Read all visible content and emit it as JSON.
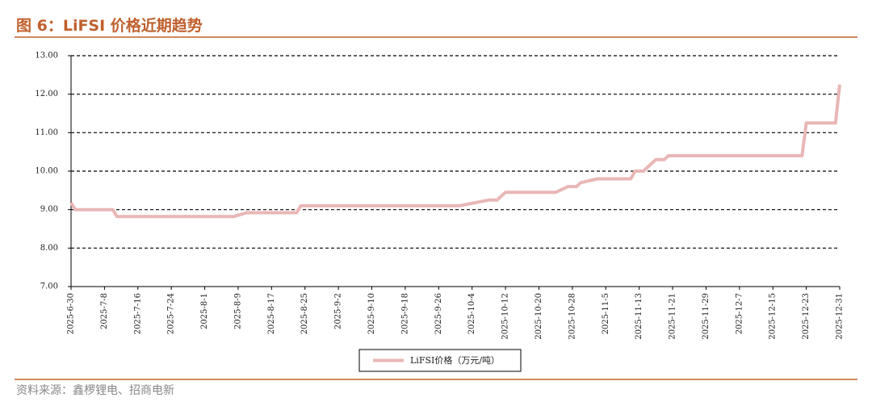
{
  "chart_data": {
    "type": "line",
    "title": "图 6：LiFSI 价格近期趋势",
    "source": "资料来源：鑫椤锂电、招商电新",
    "x": [
      "2025-6-30",
      "2025-7-1",
      "2025-7-10",
      "2025-7-11",
      "2025-8-8",
      "2025-8-11",
      "2025-8-23",
      "2025-8-24",
      "2025-10-1",
      "2025-10-8",
      "2025-10-10",
      "2025-10-12",
      "2025-10-24",
      "2025-10-27",
      "2025-10-29",
      "2025-10-30",
      "2025-11-3",
      "2025-11-11",
      "2025-11-12",
      "2025-11-14",
      "2025-11-17",
      "2025-11-19",
      "2025-11-20",
      "2025-12-22",
      "2025-12-23",
      "2025-12-30",
      "2025-12-31"
    ],
    "series": [
      {
        "name": "LiFSI价格（万元/吨）",
        "color": "#e8b7b5",
        "values": [
          9.18,
          9.0,
          9.0,
          8.82,
          8.82,
          8.92,
          8.92,
          9.1,
          9.1,
          9.25,
          9.25,
          9.45,
          9.45,
          9.6,
          9.6,
          9.7,
          9.8,
          9.8,
          10.0,
          10.0,
          10.3,
          10.3,
          10.4,
          10.4,
          11.25,
          11.25,
          12.25
        ]
      }
    ],
    "xticks": [
      "2025-6-30",
      "2025-7-8",
      "2025-7-16",
      "2025-7-24",
      "2025-8-1",
      "2025-8-9",
      "2025-8-17",
      "2025-8-25",
      "2025-9-2",
      "2025-9-10",
      "2025-9-18",
      "2025-9-26",
      "2025-10-4",
      "2025-10-12",
      "2025-10-20",
      "2025-10-28",
      "2025-11-5",
      "2025-11-13",
      "2025-11-21",
      "2025-11-29",
      "2025-12-7",
      "2025-12-15",
      "2025-12-23",
      "2025-12-31"
    ],
    "ylim": [
      7,
      13
    ],
    "yticks": [
      {
        "value": 7,
        "label": "7.00"
      },
      {
        "value": 8,
        "label": "8.00"
      },
      {
        "value": 9,
        "label": "9.00"
      },
      {
        "value": 10,
        "label": "10.00"
      },
      {
        "value": 11,
        "label": "11.00"
      },
      {
        "value": 12,
        "label": "12.00"
      },
      {
        "value": 13,
        "label": "13.00"
      }
    ],
    "grid": true
  }
}
